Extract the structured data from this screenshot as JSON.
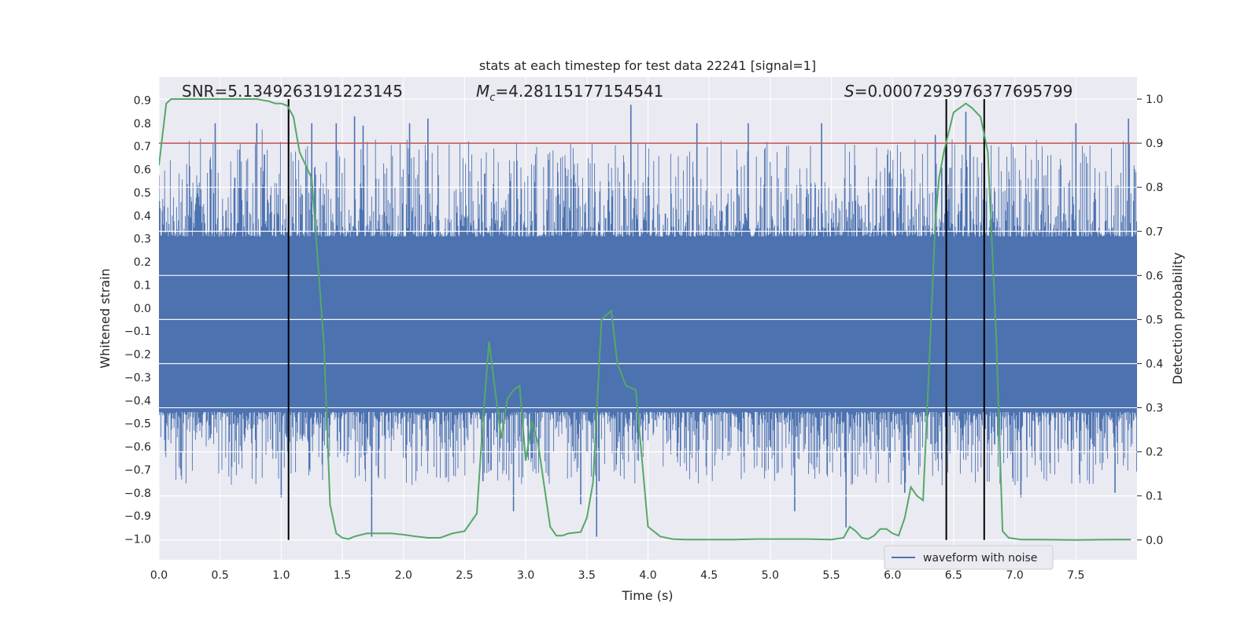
{
  "chart_data": {
    "type": "line",
    "title": "stats at each timestep for test data 22241 [signal=1]",
    "xlabel": "Time (s)",
    "ylabel": "Whitened strain",
    "y2label": "Detection probability",
    "xlim": [
      0.0,
      8.0
    ],
    "ylim": [
      -1.09,
      1.0
    ],
    "y2lim": [
      -0.045,
      1.05
    ],
    "xticks": [
      "0.0",
      "0.5",
      "1.0",
      "1.5",
      "2.0",
      "2.5",
      "3.0",
      "3.5",
      "4.0",
      "4.5",
      "5.0",
      "5.5",
      "6.0",
      "6.5",
      "7.0",
      "7.5"
    ],
    "yticks": [
      "0.9",
      "0.8",
      "0.7",
      "0.6",
      "0.5",
      "0.4",
      "0.3",
      "0.2",
      "0.1",
      "0.0",
      "−0.1",
      "−0.2",
      "−0.3",
      "−0.4",
      "−0.5",
      "−0.6",
      "−0.7",
      "−0.8",
      "−0.9",
      "−1.0"
    ],
    "y2ticks": [
      "1.0",
      "0.9",
      "0.8",
      "0.7",
      "0.6",
      "0.5",
      "0.4",
      "0.3",
      "0.2",
      "0.1",
      "0.0"
    ],
    "annotations": {
      "snr": "SNR=5.1349263191223145",
      "mc_symbol": "M",
      "mc_sub": "c",
      "mc_value": "=4.28115177154541",
      "s_symbol": "S",
      "s_value": "=0.0007293976377695799"
    },
    "threshold": {
      "value": 0.9,
      "axis": "right",
      "color": "#c44e52"
    },
    "vertical_lines": [
      1.06,
      6.44,
      6.75
    ],
    "legend": {
      "label": "waveform with noise",
      "location": "lower right"
    },
    "series": [
      {
        "name": "waveform with noise",
        "axis": "left",
        "color": "#4c72b0",
        "description": "dense whitened strain noise, core band ~[-0.45, 0.3] with spikes",
        "spikes_x": [
          0.46,
          0.8,
          1.0,
          1.25,
          1.45,
          1.6,
          1.67,
          1.74,
          2.05,
          2.2,
          2.65,
          2.9,
          3.05,
          3.45,
          3.58,
          3.6,
          3.86,
          4.4,
          4.82,
          5.2,
          5.42,
          5.62,
          6.1,
          6.35,
          6.6,
          7.05,
          7.5,
          7.65,
          7.82,
          7.93
        ],
        "spikes_y": [
          0.8,
          0.8,
          -0.82,
          0.8,
          0.8,
          0.83,
          0.79,
          -0.99,
          0.8,
          0.82,
          -0.75,
          -0.88,
          -0.65,
          -0.85,
          -0.99,
          -0.75,
          0.88,
          0.8,
          0.8,
          -0.88,
          0.8,
          -0.95,
          -0.8,
          0.75,
          0.85,
          -0.82,
          0.8,
          -0.6,
          -0.8,
          0.82
        ]
      },
      {
        "name": "detection probability",
        "axis": "right",
        "color": "#55a868",
        "x": [
          0.0,
          0.06,
          0.1,
          0.2,
          0.3,
          0.4,
          0.5,
          0.6,
          0.7,
          0.8,
          0.9,
          0.95,
          1.0,
          1.05,
          1.1,
          1.15,
          1.25,
          1.35,
          1.4,
          1.45,
          1.5,
          1.55,
          1.6,
          1.7,
          1.8,
          1.9,
          2.0,
          2.1,
          2.2,
          2.3,
          2.4,
          2.5,
          2.6,
          2.65,
          2.7,
          2.8,
          2.85,
          2.9,
          2.95,
          3.0,
          3.05,
          3.1,
          3.2,
          3.25,
          3.3,
          3.35,
          3.45,
          3.5,
          3.55,
          3.62,
          3.7,
          3.75,
          3.82,
          3.9,
          4.0,
          4.1,
          4.2,
          4.3,
          4.5,
          4.7,
          4.9,
          5.1,
          5.3,
          5.5,
          5.6,
          5.65,
          5.7,
          5.75,
          5.8,
          5.85,
          5.9,
          5.95,
          6.0,
          6.05,
          6.1,
          6.15,
          6.2,
          6.25,
          6.3,
          6.35,
          6.38,
          6.42,
          6.5,
          6.55,
          6.6,
          6.65,
          6.72,
          6.78,
          6.85,
          6.9,
          6.95,
          7.0,
          7.05,
          7.2,
          7.5,
          7.8,
          7.95
        ],
        "y": [
          0.85,
          0.99,
          1.0,
          1.0,
          1.0,
          1.0,
          1.0,
          1.0,
          1.0,
          1.0,
          0.995,
          0.99,
          0.99,
          0.985,
          0.96,
          0.88,
          0.82,
          0.44,
          0.08,
          0.015,
          0.005,
          0.002,
          0.008,
          0.015,
          0.015,
          0.015,
          0.012,
          0.008,
          0.005,
          0.005,
          0.015,
          0.02,
          0.06,
          0.27,
          0.45,
          0.23,
          0.32,
          0.34,
          0.35,
          0.18,
          0.27,
          0.22,
          0.03,
          0.01,
          0.01,
          0.015,
          0.018,
          0.05,
          0.13,
          0.5,
          0.52,
          0.4,
          0.35,
          0.34,
          0.03,
          0.008,
          0.002,
          0.001,
          0.001,
          0.001,
          0.002,
          0.002,
          0.002,
          0.001,
          0.005,
          0.03,
          0.02,
          0.005,
          0.002,
          0.01,
          0.025,
          0.025,
          0.015,
          0.01,
          0.05,
          0.12,
          0.1,
          0.09,
          0.4,
          0.72,
          0.82,
          0.88,
          0.97,
          0.98,
          0.99,
          0.98,
          0.96,
          0.88,
          0.45,
          0.02,
          0.005,
          0.003,
          0.001,
          0.001,
          0.0,
          0.001,
          0.001
        ]
      }
    ]
  }
}
